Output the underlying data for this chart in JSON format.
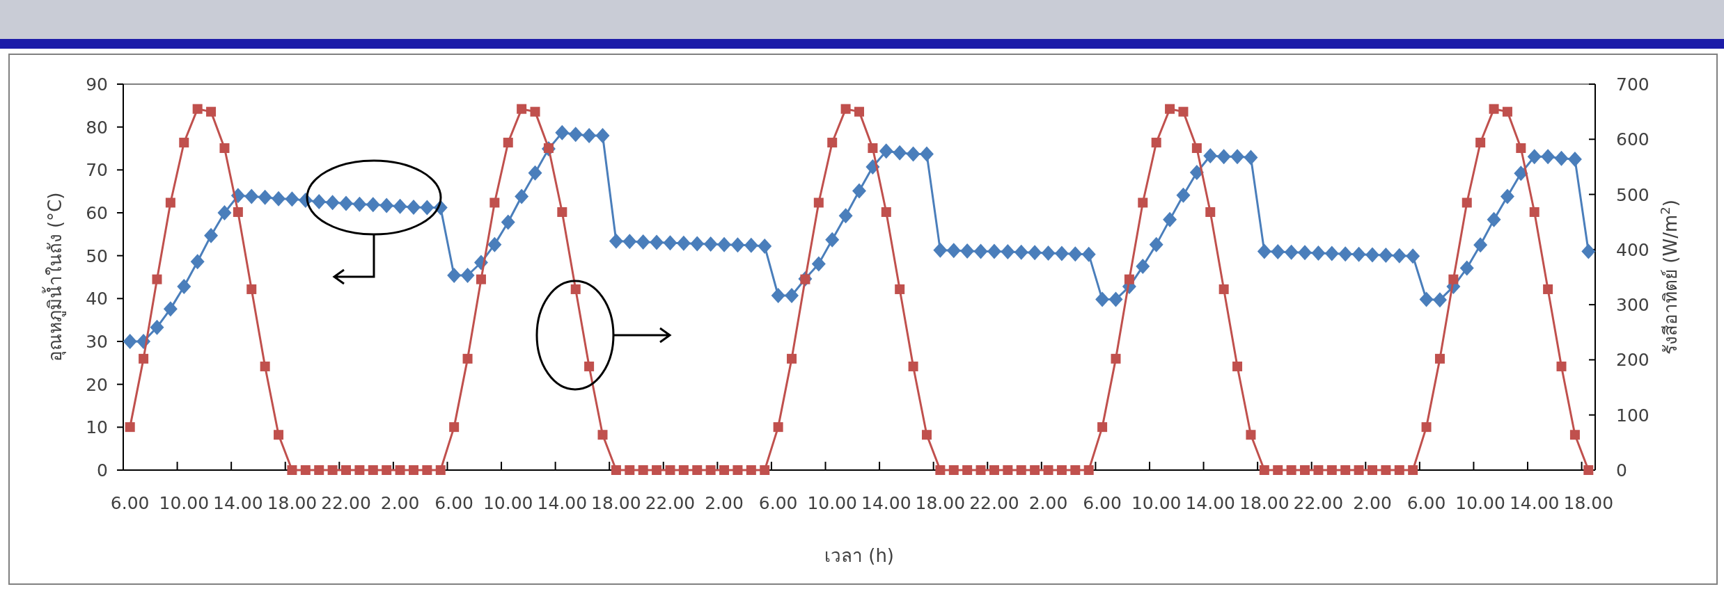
{
  "chart_data": {
    "type": "line",
    "xlabel": "เวลา (h)",
    "ylabel": "อุณหภูมิน้ำในถัง (°C)",
    "y2label": "รังสีอาทิตย์ (W/m$^{2}$)",
    "categories": [
      "6.00",
      null,
      null,
      null,
      "10.00",
      null,
      null,
      null,
      "14.00",
      null,
      null,
      null,
      "18.00",
      null,
      null,
      null,
      "22.00",
      null,
      null,
      null,
      "2.00",
      null,
      null,
      null,
      "6.00",
      null,
      null,
      null,
      "10.00",
      null,
      null,
      null,
      "14.00",
      null,
      null,
      null,
      "18.00",
      null,
      null,
      null,
      "22.00",
      null,
      null,
      null,
      "2.00",
      null,
      null,
      null,
      "6.00",
      null,
      null,
      null,
      "10.00",
      null,
      null,
      null,
      "14.00",
      null,
      null,
      null,
      "18.00",
      null,
      null,
      null,
      "22.00",
      null,
      null,
      null,
      "2.00",
      null,
      null,
      null,
      "6.00",
      null,
      null,
      null,
      "10.00",
      null,
      null,
      null,
      "14.00",
      null,
      null,
      null,
      "18.00",
      null,
      null,
      null,
      "22.00",
      null,
      null,
      null,
      "2.00",
      null,
      null,
      null,
      "6.00",
      null,
      null,
      null,
      "10.00",
      null,
      null,
      null,
      "14.00",
      null,
      null,
      null,
      "18.00"
    ],
    "ylim": [
      0,
      90
    ],
    "yticks": [
      0,
      10,
      20,
      30,
      40,
      50,
      60,
      70,
      80,
      90
    ],
    "y2lim": [
      0,
      700
    ],
    "y2ticks": [
      0,
      100,
      200,
      300,
      400,
      500,
      600,
      700
    ],
    "series": [
      {
        "color": "#4a7ebb",
        "marker": "diamond",
        "values": [
          30,
          30,
          33.3,
          37.6,
          42.8,
          48.6,
          54.7,
          60,
          64,
          63.8,
          63.6,
          63.3,
          63.2,
          62.9,
          62.6,
          62.4,
          62.2,
          62.0,
          61.9,
          61.7,
          61.5,
          61.3,
          61.2,
          61.2,
          45.4,
          45.4,
          48.4,
          52.6,
          57.8,
          63.8,
          69.3,
          74.9,
          78.7,
          78.3,
          78.0,
          78.0,
          53.4,
          53.3,
          53.2,
          53.1,
          53.0,
          52.9,
          52.8,
          52.7,
          52.6,
          52.5,
          52.4,
          52.2,
          40.7,
          40.7,
          44.6,
          48.1,
          53.7,
          59.3,
          65.1,
          70.7,
          74.4,
          74.0,
          73.7,
          73.7,
          51.3,
          51.2,
          51.1,
          51.0,
          51.0,
          50.9,
          50.8,
          50.7,
          50.6,
          50.5,
          50.4,
          50.3,
          39.8,
          39.8,
          42.8,
          47.5,
          52.6,
          58.4,
          64.1,
          69.4,
          73.3,
          73.1,
          73.1,
          72.9,
          51.0,
          50.9,
          50.8,
          50.7,
          50.6,
          50.5,
          50.4,
          50.3,
          50.2,
          50.1,
          50.0,
          49.9,
          39.8,
          39.7,
          42.8,
          47.1,
          52.5,
          58.4,
          63.8,
          69.2,
          73.1,
          73.1,
          72.7,
          72.5,
          51.0
        ]
      },
      {
        "color": "#c0504d",
        "marker": "square",
        "axis": "y2",
        "values": [
          78,
          202,
          346,
          485,
          594,
          655,
          650,
          584,
          468,
          328,
          188,
          64,
          0,
          0,
          0,
          0,
          0,
          0,
          0,
          0,
          0,
          0,
          0,
          0,
          78,
          202,
          346,
          485,
          594,
          655,
          650,
          584,
          468,
          328,
          188,
          64,
          0,
          0,
          0,
          0,
          0,
          0,
          0,
          0,
          0,
          0,
          0,
          0,
          78,
          202,
          346,
          485,
          594,
          655,
          650,
          584,
          468,
          328,
          188,
          64,
          0,
          0,
          0,
          0,
          0,
          0,
          0,
          0,
          0,
          0,
          0,
          0,
          78,
          202,
          346,
          485,
          594,
          655,
          650,
          584,
          468,
          328,
          188,
          64,
          0,
          0,
          0,
          0,
          0,
          0,
          0,
          0,
          0,
          0,
          0,
          0,
          78,
          202,
          346,
          485,
          594,
          655,
          650,
          584,
          468,
          328,
          188,
          64,
          0
        ]
      }
    ]
  }
}
